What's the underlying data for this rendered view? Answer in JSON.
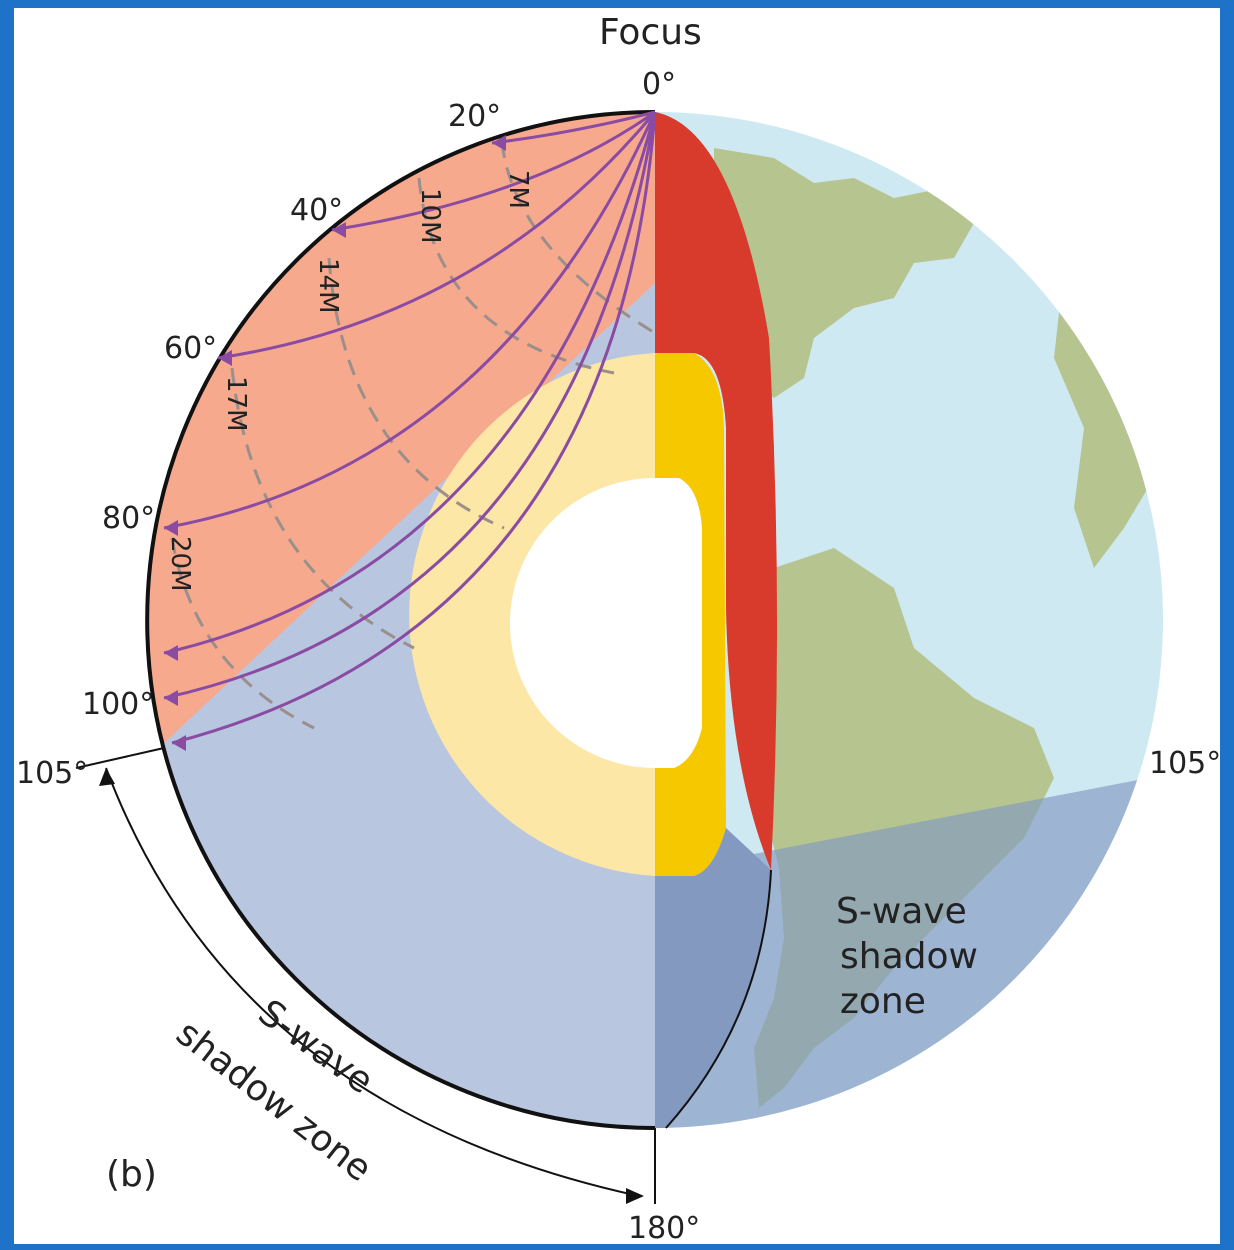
{
  "figure": {
    "panel_label": "(b)",
    "focus_label": "Focus",
    "degree_labels": [
      "0°",
      "20°",
      "40°",
      "60°",
      "80°",
      "100°",
      "105°",
      "105°",
      "180°"
    ],
    "travel_time_labels": [
      "7M",
      "10M",
      "14M",
      "17M",
      "20M"
    ],
    "shadow_zone_right": [
      "S-wave",
      "shadow",
      "zone"
    ],
    "shadow_zone_left": [
      "S-wave",
      "shadow zone"
    ]
  },
  "colors": {
    "background_frame": "#1e73c8",
    "ocean": "#cfe9f3",
    "land": "#b6c490",
    "land_shadow": "#7f9a6a",
    "mantle_wave_zone": "#f7a98e",
    "shadow_zone": "#b9c6df",
    "shadow_zone_dark": "#8399c0",
    "crust": "#d83a2b",
    "outer_core": "#fde7a6",
    "outer_core_edge": "#f5c800",
    "inner_core": "#ffffff",
    "ray": "#8a4ba3"
  }
}
